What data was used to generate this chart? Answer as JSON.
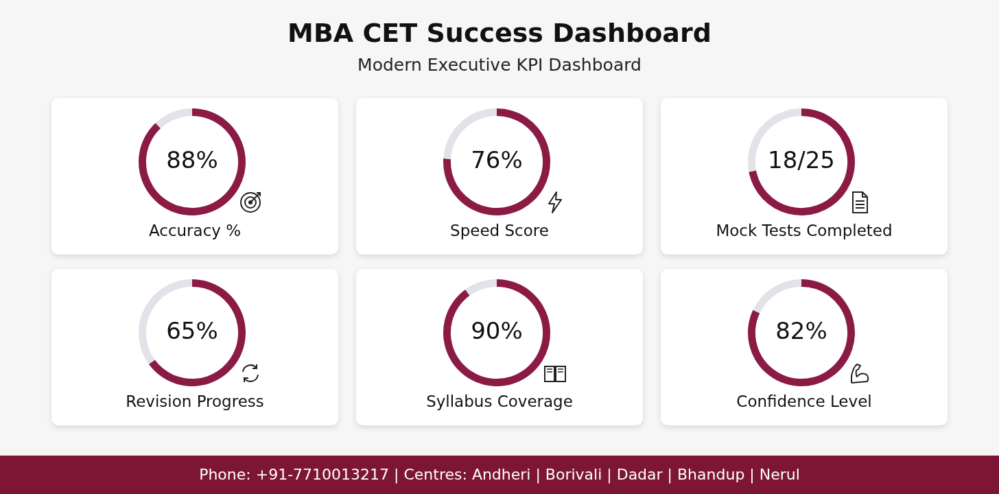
{
  "chart_data": [
    {
      "type": "donut",
      "title": "Accuracy %",
      "categories": [
        null,
        null
      ],
      "values": [
        88,
        12
      ],
      "colors": [
        "#8b1a44",
        "#e1e3e8"
      ],
      "annotations": [
        "88%"
      ]
    },
    {
      "type": "donut",
      "title": "Speed Score",
      "categories": [
        null,
        null
      ],
      "values": [
        76,
        24
      ],
      "colors": [
        "#8b1a44",
        "#e1e3e8"
      ],
      "annotations": [
        "76%"
      ]
    },
    {
      "type": "donut",
      "title": "Mock Tests Completed",
      "categories": [
        null,
        null
      ],
      "values": [
        72,
        28
      ],
      "colors": [
        "#8b1a44",
        "#e1e3e8"
      ],
      "annotations": [
        "18/25"
      ]
    },
    {
      "type": "donut",
      "title": "Revision Progress",
      "categories": [
        null,
        null
      ],
      "values": [
        65,
        35
      ],
      "colors": [
        "#8b1a44",
        "#e1e3e8"
      ],
      "annotations": [
        "65%"
      ]
    },
    {
      "type": "donut",
      "title": "Syllabus Coverage",
      "categories": [
        null,
        null
      ],
      "values": [
        90,
        10
      ],
      "colors": [
        "#8b1a44",
        "#e1e3e8"
      ],
      "annotations": [
        "90%"
      ]
    },
    {
      "type": "donut",
      "title": "Confidence Level",
      "categories": [
        null,
        null
      ],
      "values": [
        82,
        18
      ],
      "colors": [
        "#8b1a44",
        "#e1e3e8"
      ],
      "annotations": [
        "82%"
      ]
    },
    {
      "type": "other",
      "title": "MBA CET Success Dashboard",
      "subtitle": "Modern Executive KPI Dashboard",
      "annotations": [
        "Phone: +91-7710013217 | Centres: Andheri | Borivali | Dadar | Bhandup | Nerul"
      ]
    }
  ]
}
